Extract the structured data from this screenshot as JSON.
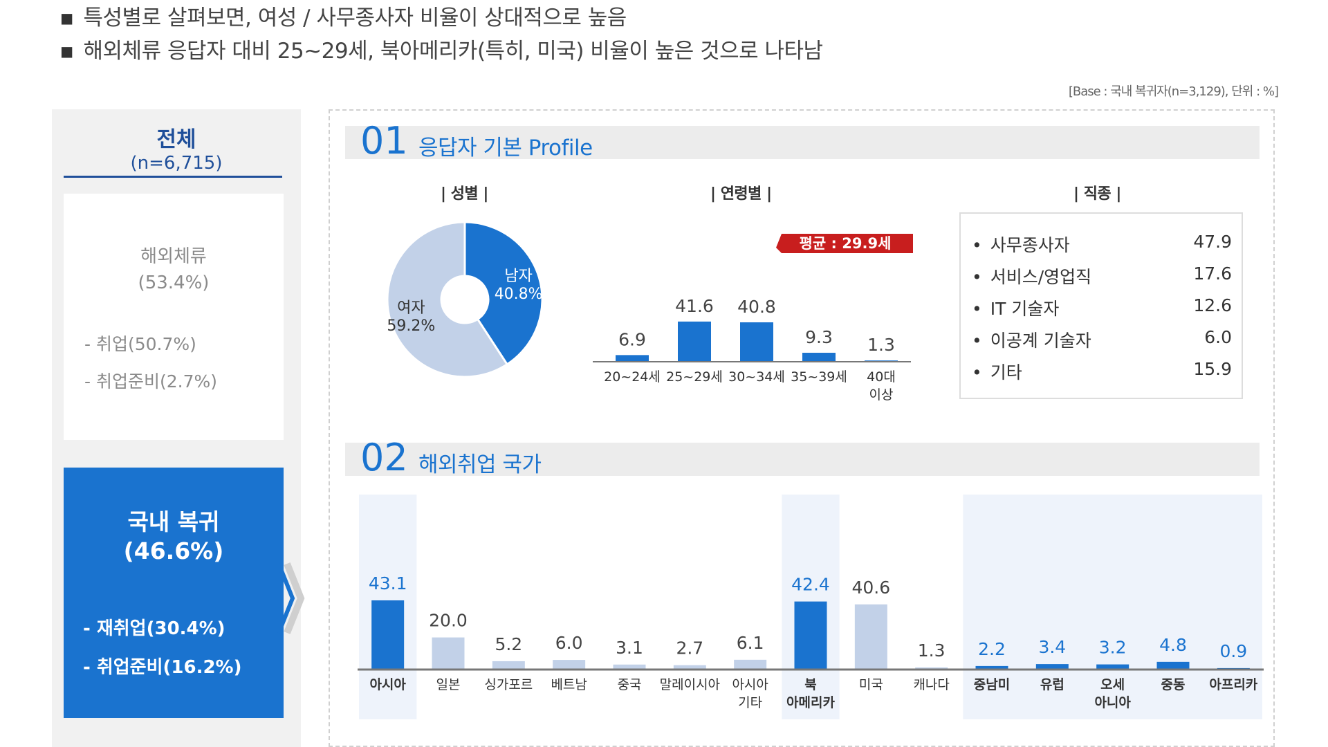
{
  "header": {
    "bullet1": "특성별로 살펴보면, 여성 / 사무종사자  비율이 상대적으로 높음",
    "bullet2": "해외체류 응답자 대비 25~29세, 북아메리카(특히, 미국) 비율이 높은 것으로 나타남",
    "base_note": "[Base : 국내 복귀자(n=3,129), 단위 : %]"
  },
  "left_panel": {
    "total_title": "전체",
    "total_n": "(n=6,715)",
    "overseas_title": "해외체류",
    "overseas_pct": "(53.4%)",
    "overseas_items": [
      "- 취업(50.7%)",
      "- 취업준비(2.7%)"
    ],
    "domestic_title": "국내 복귀",
    "domestic_pct": "(46.6%)",
    "domestic_items": [
      "- 재취업(30.4%)",
      "- 취업준비(16.2%)"
    ]
  },
  "section1": {
    "num": "01",
    "title": "응답자 기본 Profile",
    "gender_label": "| 성별 |",
    "age_label": "| 연령별 |",
    "job_label": "| 직종 |",
    "avg_badge": "평균 : 29.9세"
  },
  "section2": {
    "num": "02",
    "title": "해외취업 국가"
  },
  "chart_data": [
    {
      "type": "pie",
      "title": "성별",
      "labels": [
        "남자",
        "여자"
      ],
      "values": [
        40.8,
        59.2
      ],
      "colors": [
        "#1a73cf",
        "#c2d1e8"
      ]
    },
    {
      "type": "bar",
      "title": "연령별",
      "categories": [
        "20~24세",
        "25~29세",
        "30~34세",
        "35~39세",
        "40대 이상"
      ],
      "values": [
        6.9,
        41.6,
        40.8,
        9.3,
        1.3
      ],
      "ylim": [
        0,
        50
      ],
      "color": "#1a73cf"
    },
    {
      "type": "table",
      "title": "직종",
      "rows": [
        {
          "label": "사무종사자",
          "value": "47.9"
        },
        {
          "label": "서비스/영업직",
          "value": "17.6"
        },
        {
          "label": "IT 기술자",
          "value": "12.6"
        },
        {
          "label": "이공계 기술자",
          "value": "6.0"
        },
        {
          "label": "기타",
          "value": "15.9"
        }
      ]
    },
    {
      "type": "bar",
      "title": "해외취업 국가",
      "categories": [
        "아시아",
        "일본",
        "싱가포르",
        "베트남",
        "중국",
        "말레이시아",
        "아시아 기타",
        "북 아메리카",
        "미국",
        "캐나다",
        "중남미",
        "유럽",
        "오세 아니아",
        "중동",
        "아프리카"
      ],
      "values": [
        43.1,
        20.0,
        5.2,
        6.0,
        3.1,
        2.7,
        6.1,
        42.4,
        40.6,
        1.3,
        2.2,
        3.4,
        3.2,
        4.8,
        0.9
      ],
      "ylim": [
        0,
        50
      ],
      "primary": [
        "아시아",
        "북 아메리카",
        "중남미",
        "유럽",
        "오세 아니아",
        "중동",
        "아프리카"
      ],
      "colors": {
        "primary": "#1a73cf",
        "secondary": "#c2d1e8",
        "highlight_bg": "#eef3fb"
      }
    }
  ]
}
